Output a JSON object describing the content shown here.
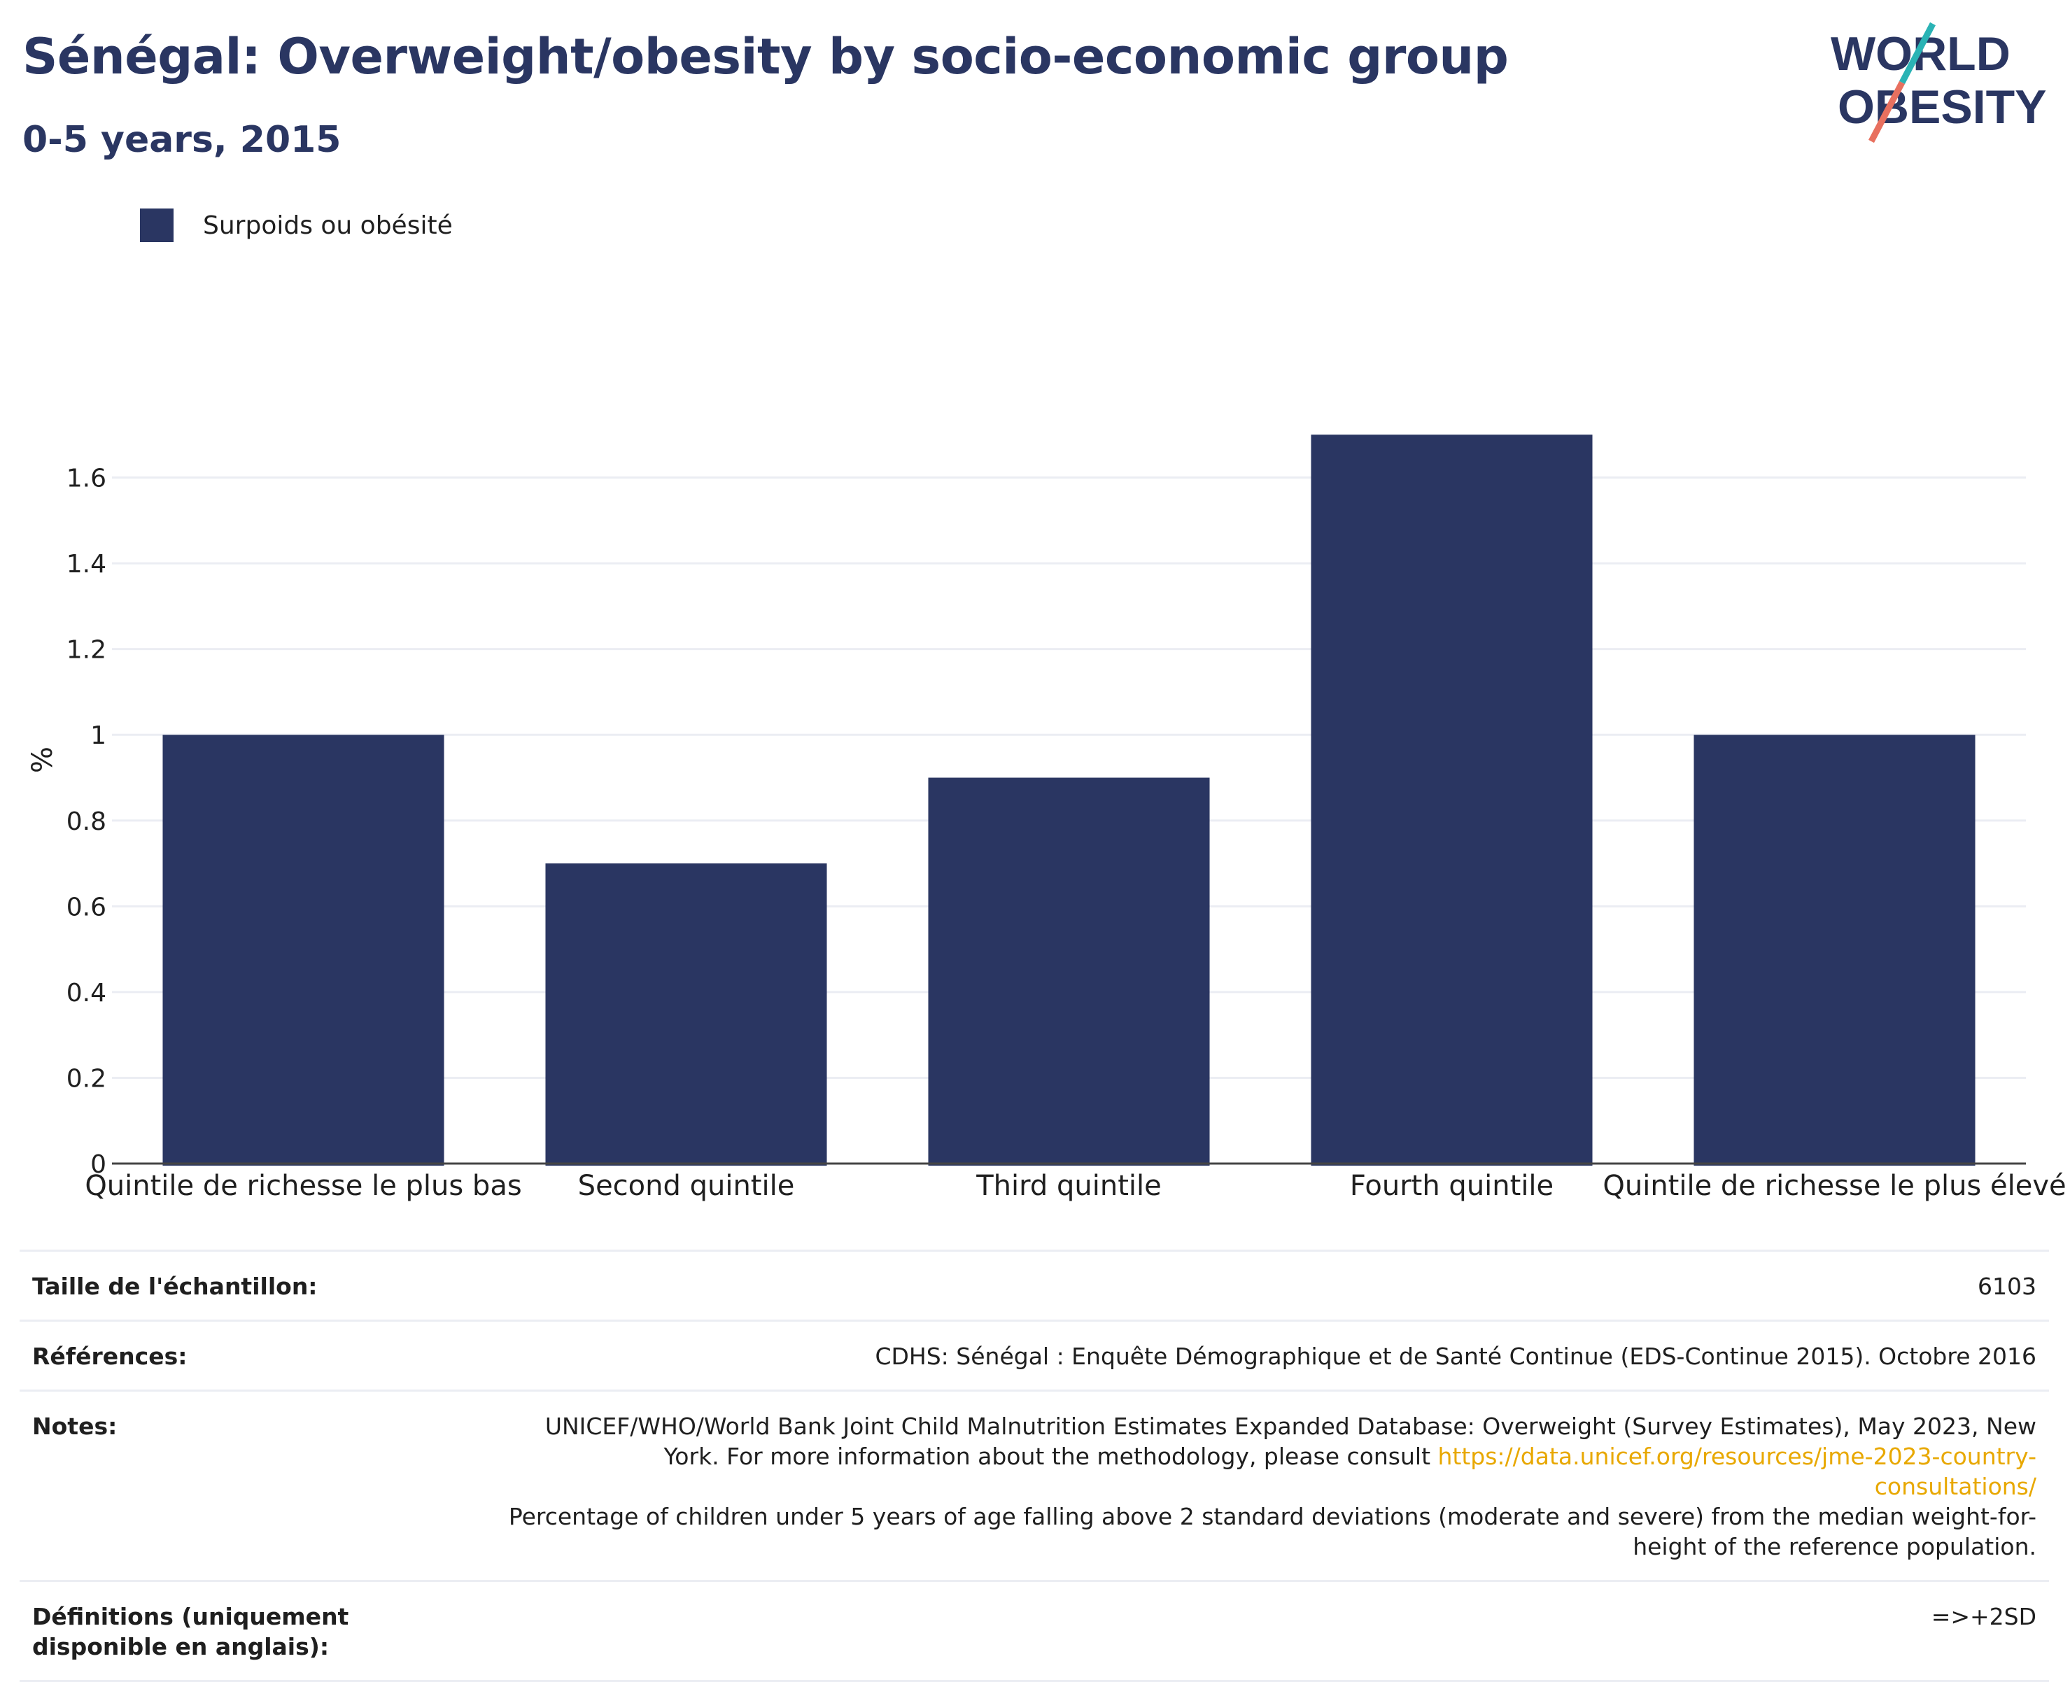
{
  "header": {
    "title": "Sénégal: Overweight/obesity by socio-economic group",
    "subtitle": "0-5 years, 2015"
  },
  "logo": {
    "line1": "WORLD",
    "line2": "OBESITY"
  },
  "colors": {
    "bar": "#2a3662",
    "title": "#2a3662",
    "link": "#e8a800",
    "logo_teal": "#2ab3b5",
    "logo_coral": "#e8705f"
  },
  "chart_data": {
    "type": "bar",
    "categories": [
      "Quintile de richesse le plus bas",
      "Second quintile",
      "Third quintile",
      "Fourth quintile",
      "Quintile de richesse le plus élevé"
    ],
    "series": [
      {
        "name": "Surpoids ou obésité",
        "values": [
          1.0,
          0.7,
          0.9,
          1.7,
          1.0
        ]
      }
    ],
    "ylabel": "%",
    "ylim": [
      0,
      1.8
    ],
    "yticks": [
      0,
      0.2,
      0.4,
      0.6,
      0.8,
      1,
      1.2,
      1.4,
      1.6
    ],
    "ytick_labels": [
      "0",
      "0.2",
      "0.4",
      "0.6",
      "0.8",
      "1",
      "1.2",
      "1.4",
      "1.6"
    ],
    "grid": true,
    "legend": "top-left"
  },
  "table": {
    "sample_label": "Taille de l'échantillon:",
    "sample_value": "6103",
    "references_label": "Références:",
    "references_value": "CDHS: Sénégal : Enquête Démographique et de Santé Continue (EDS-Continue 2015). Octobre 2016",
    "notes_label": "Notes:",
    "notes_line1": "UNICEF/WHO/World Bank Joint Child Malnutrition Estimates Expanded Database: Overweight (Survey Estimates), May 2023, New",
    "notes_line2_prefix": "York. For more information about the methodology, please consult ",
    "notes_link": "https://data.unicef.org/resources/jme-2023-country-consultations/",
    "notes_line3": "Percentage of children under 5 years of age falling above 2 standard deviations (moderate and severe) from the median weight-for-",
    "notes_line4": "height of the reference population.",
    "definitions_label": "Définitions (uniquement disponible en anglais):",
    "definitions_value": "=>+2SD"
  }
}
